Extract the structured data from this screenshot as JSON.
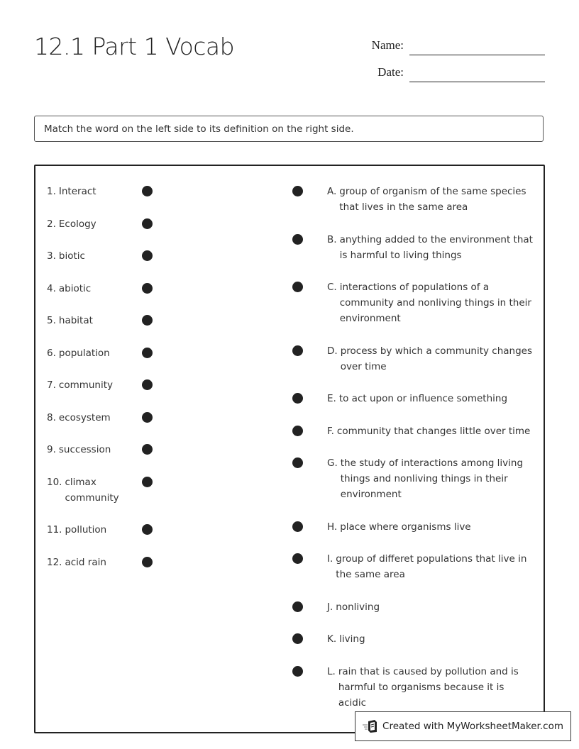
{
  "header": {
    "title": "12.1 Part 1 Vocab",
    "name_label": "Name:",
    "date_label": "Date:"
  },
  "instructions": "Match the word on the left side to its definition on the right side.",
  "words": [
    {
      "num": "1.",
      "text": "Interact"
    },
    {
      "num": "2.",
      "text": "Ecology"
    },
    {
      "num": "3.",
      "text": "biotic"
    },
    {
      "num": "4.",
      "text": "abiotic"
    },
    {
      "num": "5.",
      "text": "habitat"
    },
    {
      "num": "6.",
      "text": "population"
    },
    {
      "num": "7.",
      "text": "community"
    },
    {
      "num": "8.",
      "text": "ecosystem"
    },
    {
      "num": "9.",
      "text": "succession"
    },
    {
      "num": "10.",
      "text": "climax community"
    },
    {
      "num": "11.",
      "text": "pollution"
    },
    {
      "num": "12.",
      "text": "acid rain"
    }
  ],
  "definitions": [
    {
      "letter": "A.",
      "text": "group of organism of the same species that lives in the same area"
    },
    {
      "letter": "B.",
      "text": "anything added to the environment that is harmful to living things"
    },
    {
      "letter": "C.",
      "text": "interactions of populations of a community and nonliving things in their environment"
    },
    {
      "letter": "D.",
      "text": "process by which a community changes over time"
    },
    {
      "letter": "E.",
      "text": "to act upon or influence something"
    },
    {
      "letter": "F.",
      "text": "community that changes little over time"
    },
    {
      "letter": "G.",
      "text": "the study of interactions among living things and nonliving things in their environment"
    },
    {
      "letter": "H.",
      "text": "place where organisms live"
    },
    {
      "letter": "I.",
      "text": "group of differet populations that live in the same area"
    },
    {
      "letter": "J.",
      "text": "nonliving"
    },
    {
      "letter": "K.",
      "text": "living"
    },
    {
      "letter": "L.",
      "text": "rain that is caused by pollution and is harmful to organisms because it is acidic"
    }
  ],
  "footer": {
    "text": "Created with MyWorksheetMaker.com",
    "icon": "worksheet-maker-logo-icon"
  }
}
